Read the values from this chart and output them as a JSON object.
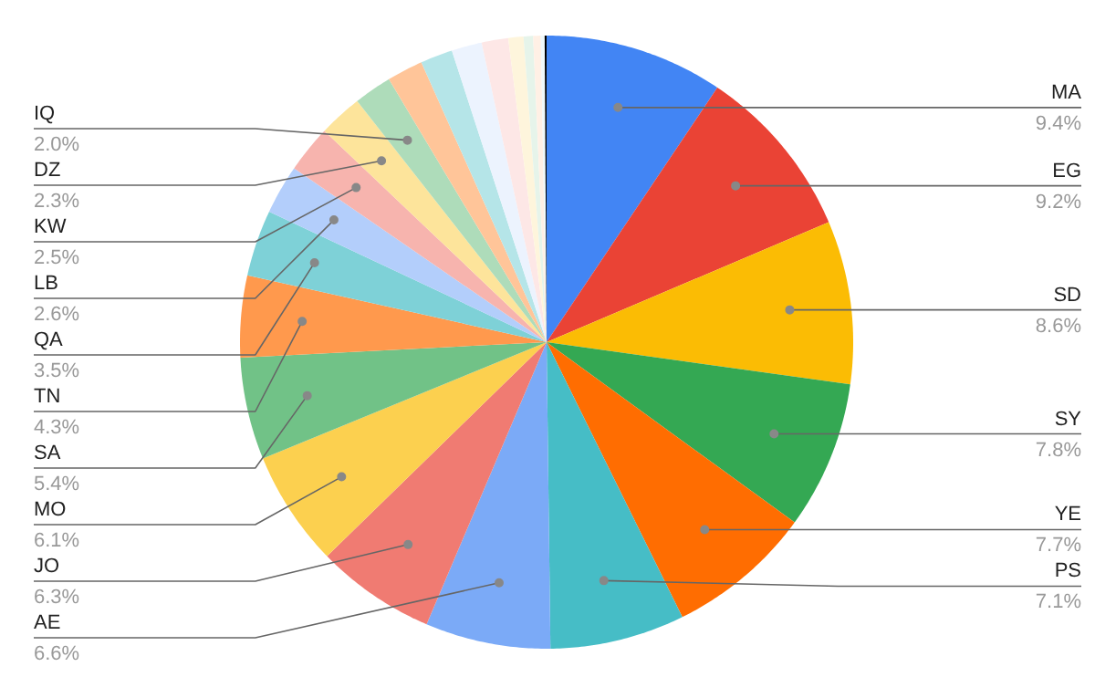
{
  "chart_data": {
    "type": "pie",
    "categories": [
      "MA",
      "EG",
      "SD",
      "SY",
      "YE",
      "PS",
      "AE",
      "JO",
      "MO",
      "SA",
      "TN",
      "QA",
      "LB",
      "KW",
      "DZ",
      "IQ",
      null,
      null,
      null,
      null,
      null,
      null,
      null,
      null,
      null
    ],
    "values": [
      9.4,
      9.2,
      8.6,
      7.8,
      7.7,
      7.1,
      6.6,
      6.3,
      6.1,
      5.4,
      4.3,
      3.5,
      2.6,
      2.5,
      2.3,
      2.0,
      1.9,
      1.7,
      1.6,
      1.4,
      0.8,
      0.5,
      0.4,
      0.2,
      0.1
    ],
    "value_labels": [
      "9.4%",
      "9.2%",
      "8.6%",
      "7.8%",
      "7.7%",
      "7.1%",
      "6.6%",
      "6.3%",
      "6.1%",
      "5.4%",
      "4.3%",
      "3.5%",
      "2.6%",
      "2.5%",
      "2.3%",
      "2.0%",
      null,
      null,
      null,
      null,
      null,
      null,
      null,
      null,
      null
    ],
    "colors": [
      "#4285f4",
      "#ea4335",
      "#fbbc04",
      "#34a853",
      "#ff6d01",
      "#46bdc6",
      "#7baaf7",
      "#f07b72",
      "#fcd04f",
      "#71c287",
      "#ff994d",
      "#7ed1d7",
      "#b3cefb",
      "#f7b4ae",
      "#fde49b",
      "#aedcba",
      "#ffc599",
      "#b5e5e8",
      "#ecf3fe",
      "#fde7e6",
      "#fef5dc",
      "#e6f4ea",
      "#fff0e5",
      "#f0f9fa",
      "#000000"
    ]
  }
}
